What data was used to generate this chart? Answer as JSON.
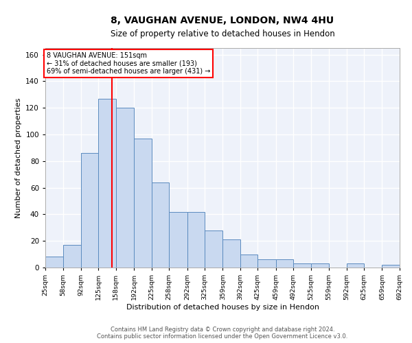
{
  "title": "8, VAUGHAN AVENUE, LONDON, NW4 4HU",
  "subtitle": "Size of property relative to detached houses in Hendon",
  "xlabel": "Distribution of detached houses by size in Hendon",
  "ylabel": "Number of detached properties",
  "bar_color": "#c9d9f0",
  "bar_edge_color": "#5a8abf",
  "background_color": "#eef2fa",
  "grid_color": "white",
  "vline_x": 151,
  "vline_color": "red",
  "annotation_line1": "8 VAUGHAN AVENUE: 151sqm",
  "annotation_line2": "← 31% of detached houses are smaller (193)",
  "annotation_line3": "69% of semi-detached houses are larger (431) →",
  "annotation_box_color": "white",
  "annotation_box_edge": "red",
  "footer_text": "Contains HM Land Registry data © Crown copyright and database right 2024.\nContains public sector information licensed under the Open Government Licence v3.0.",
  "bin_edges": [
    25,
    58,
    92,
    125,
    158,
    192,
    225,
    258,
    292,
    325,
    359,
    392,
    425,
    459,
    492,
    525,
    559,
    592,
    625,
    659,
    692
  ],
  "bar_heights": [
    8,
    17,
    86,
    127,
    120,
    97,
    64,
    42,
    42,
    28,
    21,
    10,
    6,
    6,
    3,
    3,
    0,
    3,
    0,
    2
  ],
  "ylim": [
    0,
    165
  ],
  "yticks": [
    0,
    20,
    40,
    60,
    80,
    100,
    120,
    140,
    160
  ],
  "tick_labels": [
    "25sqm",
    "58sqm",
    "92sqm",
    "125sqm",
    "158sqm",
    "192sqm",
    "225sqm",
    "258sqm",
    "292sqm",
    "325sqm",
    "359sqm",
    "392sqm",
    "425sqm",
    "459sqm",
    "492sqm",
    "525sqm",
    "559sqm",
    "592sqm",
    "625sqm",
    "659sqm",
    "692sqm"
  ],
  "title_fontsize": 10,
  "subtitle_fontsize": 8.5,
  "ylabel_fontsize": 8,
  "xlabel_fontsize": 8,
  "ytick_fontsize": 7.5,
  "xtick_fontsize": 6.8,
  "footer_fontsize": 6,
  "annotation_fontsize": 7
}
